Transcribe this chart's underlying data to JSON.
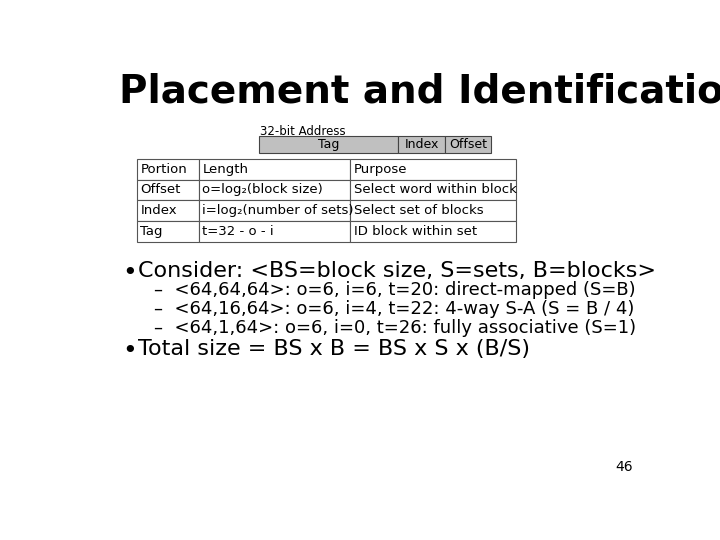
{
  "title": "Placement and Identification",
  "bg_color": "#ffffff",
  "title_color": "#000000",
  "title_fontsize": 28,
  "address_label": "32-bit Address",
  "tag_bar_segments": [
    {
      "label": "Tag",
      "weight": 3,
      "color": "#c0c0c0"
    },
    {
      "label": "Index",
      "weight": 1,
      "color": "#c0c0c0"
    },
    {
      "label": "Offset",
      "weight": 1,
      "color": "#c0c0c0"
    }
  ],
  "table_headers": [
    "Portion",
    "Length",
    "Purpose"
  ],
  "table_rows": [
    [
      "Offset",
      "o=log₂(block size)",
      "Select word within block"
    ],
    [
      "Index",
      "i=log₂(number of sets)",
      "Select set of blocks"
    ],
    [
      "Tag",
      "t=32 - o - i",
      "ID block within set"
    ]
  ],
  "bullet1_text": "Consider: <BS=block size, S=sets, B=blocks>",
  "bullet1_fontsize": 16,
  "sub_items": [
    "–  <64,64,64>: o=6, i=6, t=20: direct-mapped (S=B)",
    "–  <64,16,64>: o=6, i=4, t=22: 4-way S-A (S = B / 4)",
    "–  <64,1,64>: o=6, i=0, t=26: fully associative (S=1)"
  ],
  "sub_fontsize": 13,
  "bullet2_text": "Total size = BS x B = BS x S x (B/S)",
  "bullet2_fontsize": 16,
  "slide_number": "46",
  "font_family": "DejaVu Sans"
}
